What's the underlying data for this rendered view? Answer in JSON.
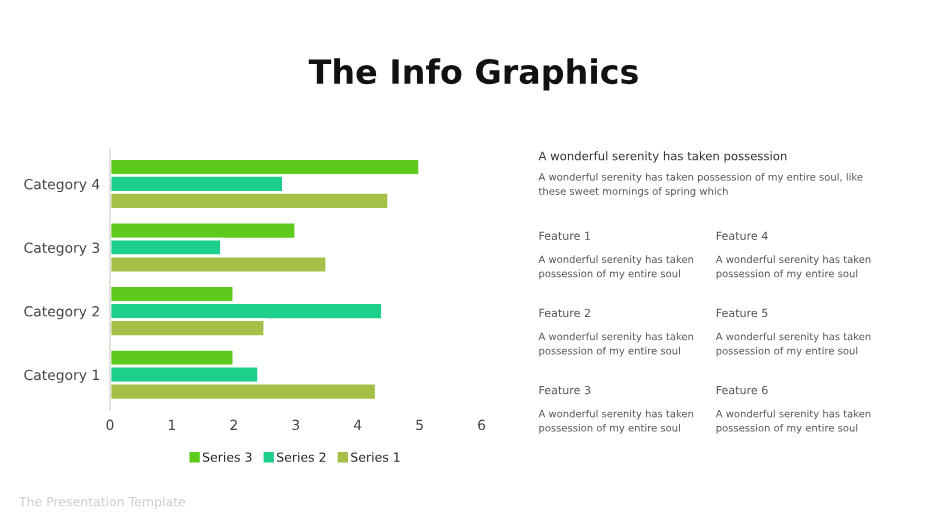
{
  "chart_data": {
    "type": "bar",
    "orientation": "horizontal",
    "title": "The Info Graphics",
    "categories": [
      "Category 4",
      "Category 3",
      "Category 2",
      "Category 1"
    ],
    "series": [
      {
        "name": "Series 3",
        "color": "#5ccb1c",
        "values": [
          5,
          3,
          2,
          2
        ]
      },
      {
        "name": "Series 2",
        "color": "#1ecf8c",
        "values": [
          2.8,
          1.8,
          4.4,
          2.4
        ]
      },
      {
        "name": "Series 1",
        "color": "#a4c046",
        "values": [
          4.5,
          3.5,
          2.5,
          4.3
        ]
      }
    ],
    "xlim": [
      0,
      6
    ],
    "xticks": [
      0,
      1,
      2,
      3,
      4,
      5,
      6
    ],
    "grid": false,
    "legend": "bottom",
    "annotations": [
      "A wonderful serenity has taken possession",
      "A wonderful serenity has taken possession of my entire soul, like\nthese sweet mornings of spring which",
      "Feature 1",
      "A wonderful serenity has taken\npossession of my entire soul",
      "Feature 4",
      "A wonderful serenity has taken\npossession of my entire soul",
      "Feature 2",
      "A wonderful serenity has taken\npossession of my entire soul",
      "Feature 5",
      "A wonderful serenity has taken\npossession of my entire soul",
      "Feature 3",
      "A wonderful serenity has taken\npossession of my entire soul",
      "Feature 6",
      "A wonderful serenity has taken\npossession of my entire soul",
      "The Presentation Template"
    ]
  }
}
